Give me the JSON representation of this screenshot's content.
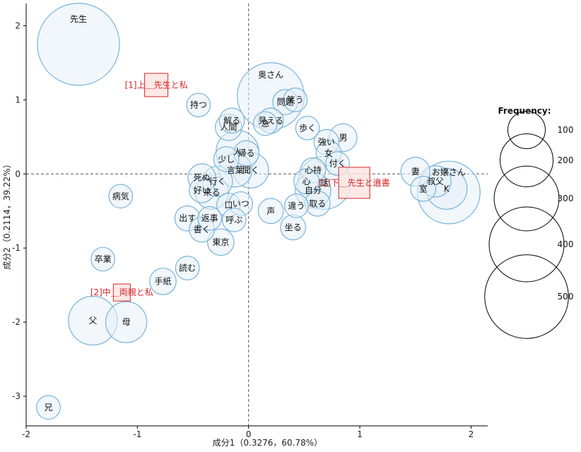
{
  "chart_data": {
    "type": "scatter",
    "subtype": "correspondence-analysis-bubble",
    "xlabel": "成分1（0.3276，60.78%）",
    "ylabel": "成分2（0.2114，39.22%）",
    "xlim": [
      -2,
      2.15
    ],
    "ylim": [
      -3.4,
      2.3
    ],
    "x_ticks": [
      -2,
      -1,
      0,
      1,
      2
    ],
    "y_ticks": [
      -3,
      -2,
      -1,
      0,
      1,
      2
    ],
    "reference_lines": {
      "x": 0,
      "y": 0,
      "style": "dashed"
    },
    "point_color": "#7ab3d9",
    "point_fill": "#e6f0f8",
    "doc_color": "#d62728",
    "doc_fill": "#fde4e0",
    "words": [
      {
        "label": "先生",
        "x": -1.53,
        "y": 1.75,
        "freq": 480
      },
      {
        "label": "持つ",
        "x": -0.45,
        "y": 0.93,
        "freq": 40
      },
      {
        "label": "解る",
        "x": -0.15,
        "y": 0.72,
        "freq": 45
      },
      {
        "label": "人間",
        "x": -0.18,
        "y": 0.63,
        "freq": 50
      },
      {
        "label": "奥さん",
        "x": 0.2,
        "y": 1.05,
        "freq": 320
      },
      {
        "label": "問題",
        "x": 0.33,
        "y": 0.97,
        "freq": 45
      },
      {
        "label": "笑う",
        "x": 0.42,
        "y": 1.0,
        "freq": 40
      },
      {
        "label": "見える",
        "x": 0.2,
        "y": 0.72,
        "freq": 45
      },
      {
        "label": "急",
        "x": 0.15,
        "y": 0.68,
        "freq": 40
      },
      {
        "label": "歩く",
        "x": 0.53,
        "y": 0.62,
        "freq": 40
      },
      {
        "label": "強い",
        "x": 0.7,
        "y": 0.43,
        "freq": 45
      },
      {
        "label": "男",
        "x": 0.85,
        "y": 0.49,
        "freq": 55
      },
      {
        "label": "女",
        "x": 0.72,
        "y": 0.28,
        "freq": 45
      },
      {
        "label": "付く",
        "x": 0.8,
        "y": 0.14,
        "freq": 40
      },
      {
        "label": "人",
        "x": -0.1,
        "y": 0.3,
        "freq": 130
      },
      {
        "label": "帰る",
        "x": -0.02,
        "y": 0.28,
        "freq": 45
      },
      {
        "label": "少し",
        "x": -0.2,
        "y": 0.2,
        "freq": 45
      },
      {
        "label": "言葉",
        "x": -0.12,
        "y": 0.05,
        "freq": 80
      },
      {
        "label": "聞く",
        "x": 0.02,
        "y": 0.05,
        "freq": 90
      },
      {
        "label": "死ぬ",
        "x": -0.42,
        "y": -0.05,
        "freq": 55
      },
      {
        "label": "行く",
        "x": -0.28,
        "y": -0.1,
        "freq": 65
      },
      {
        "label": "好い",
        "x": -0.42,
        "y": -0.22,
        "freq": 45
      },
      {
        "label": "来る",
        "x": -0.33,
        "y": -0.25,
        "freq": 80
      },
      {
        "label": "心持",
        "x": 0.58,
        "y": 0.05,
        "freq": 45
      },
      {
        "label": "心",
        "x": 0.52,
        "y": -0.1,
        "freq": 45
      },
      {
        "label": "話",
        "x": 0.68,
        "y": -0.12,
        "freq": 200
      },
      {
        "label": "自分",
        "x": 0.58,
        "y": -0.22,
        "freq": 90
      },
      {
        "label": "取る",
        "x": 0.62,
        "y": -0.4,
        "freq": 45
      },
      {
        "label": "違う",
        "x": 0.43,
        "y": -0.43,
        "freq": 40
      },
      {
        "label": "口",
        "x": -0.18,
        "y": -0.42,
        "freq": 40
      },
      {
        "label": "いつ",
        "x": -0.07,
        "y": -0.4,
        "freq": 40
      },
      {
        "label": "声",
        "x": 0.2,
        "y": -0.5,
        "freq": 45
      },
      {
        "label": "出す",
        "x": -0.55,
        "y": -0.6,
        "freq": 45
      },
      {
        "label": "返事",
        "x": -0.35,
        "y": -0.6,
        "freq": 40
      },
      {
        "label": "呼ぶ",
        "x": -0.13,
        "y": -0.62,
        "freq": 40
      },
      {
        "label": "坐る",
        "x": 0.4,
        "y": -0.72,
        "freq": 45
      },
      {
        "label": "書く",
        "x": -0.42,
        "y": -0.75,
        "freq": 45
      },
      {
        "label": "東京",
        "x": -0.25,
        "y": -0.92,
        "freq": 50
      },
      {
        "label": "妻",
        "x": 1.5,
        "y": 0.03,
        "freq": 60
      },
      {
        "label": "叔父",
        "x": 1.68,
        "y": -0.1,
        "freq": 70
      },
      {
        "label": "室",
        "x": 1.57,
        "y": -0.2,
        "freq": 45
      },
      {
        "label": "K",
        "x": 1.78,
        "y": -0.2,
        "freq": 120
      },
      {
        "label": "お嬢さん",
        "x": 1.8,
        "y": -0.25,
        "freq": 280
      },
      {
        "label": "病気",
        "x": -1.15,
        "y": -0.3,
        "freq": 40
      },
      {
        "label": "卒業",
        "x": -1.31,
        "y": -1.15,
        "freq": 40
      },
      {
        "label": "読む",
        "x": -0.55,
        "y": -1.27,
        "freq": 40
      },
      {
        "label": "手紙",
        "x": -0.77,
        "y": -1.45,
        "freq": 50
      },
      {
        "label": "父",
        "x": -1.4,
        "y": -1.98,
        "freq": 170
      },
      {
        "label": "母",
        "x": -1.1,
        "y": -2.0,
        "freq": 120
      },
      {
        "label": "兄",
        "x": -1.8,
        "y": -3.15,
        "freq": 40
      }
    ],
    "documents": [
      {
        "label": "[1]上＿先生と私",
        "x": -0.83,
        "y": 1.2,
        "size": 33
      },
      {
        "label": "[2]中＿両親と私",
        "x": -1.14,
        "y": -1.6,
        "size": 24
      },
      {
        "label": "[3]下＿先生と遺書",
        "x": 0.95,
        "y": -0.12,
        "size": 44
      }
    ],
    "legend": {
      "title": "Frequency:",
      "placement": "right",
      "entries": [
        {
          "label": "100",
          "freq": 100
        },
        {
          "label": "200",
          "freq": 200
        },
        {
          "label": "300",
          "freq": 300
        },
        {
          "label": "400",
          "freq": 400
        },
        {
          "label": "500",
          "freq": 500
        }
      ]
    }
  }
}
